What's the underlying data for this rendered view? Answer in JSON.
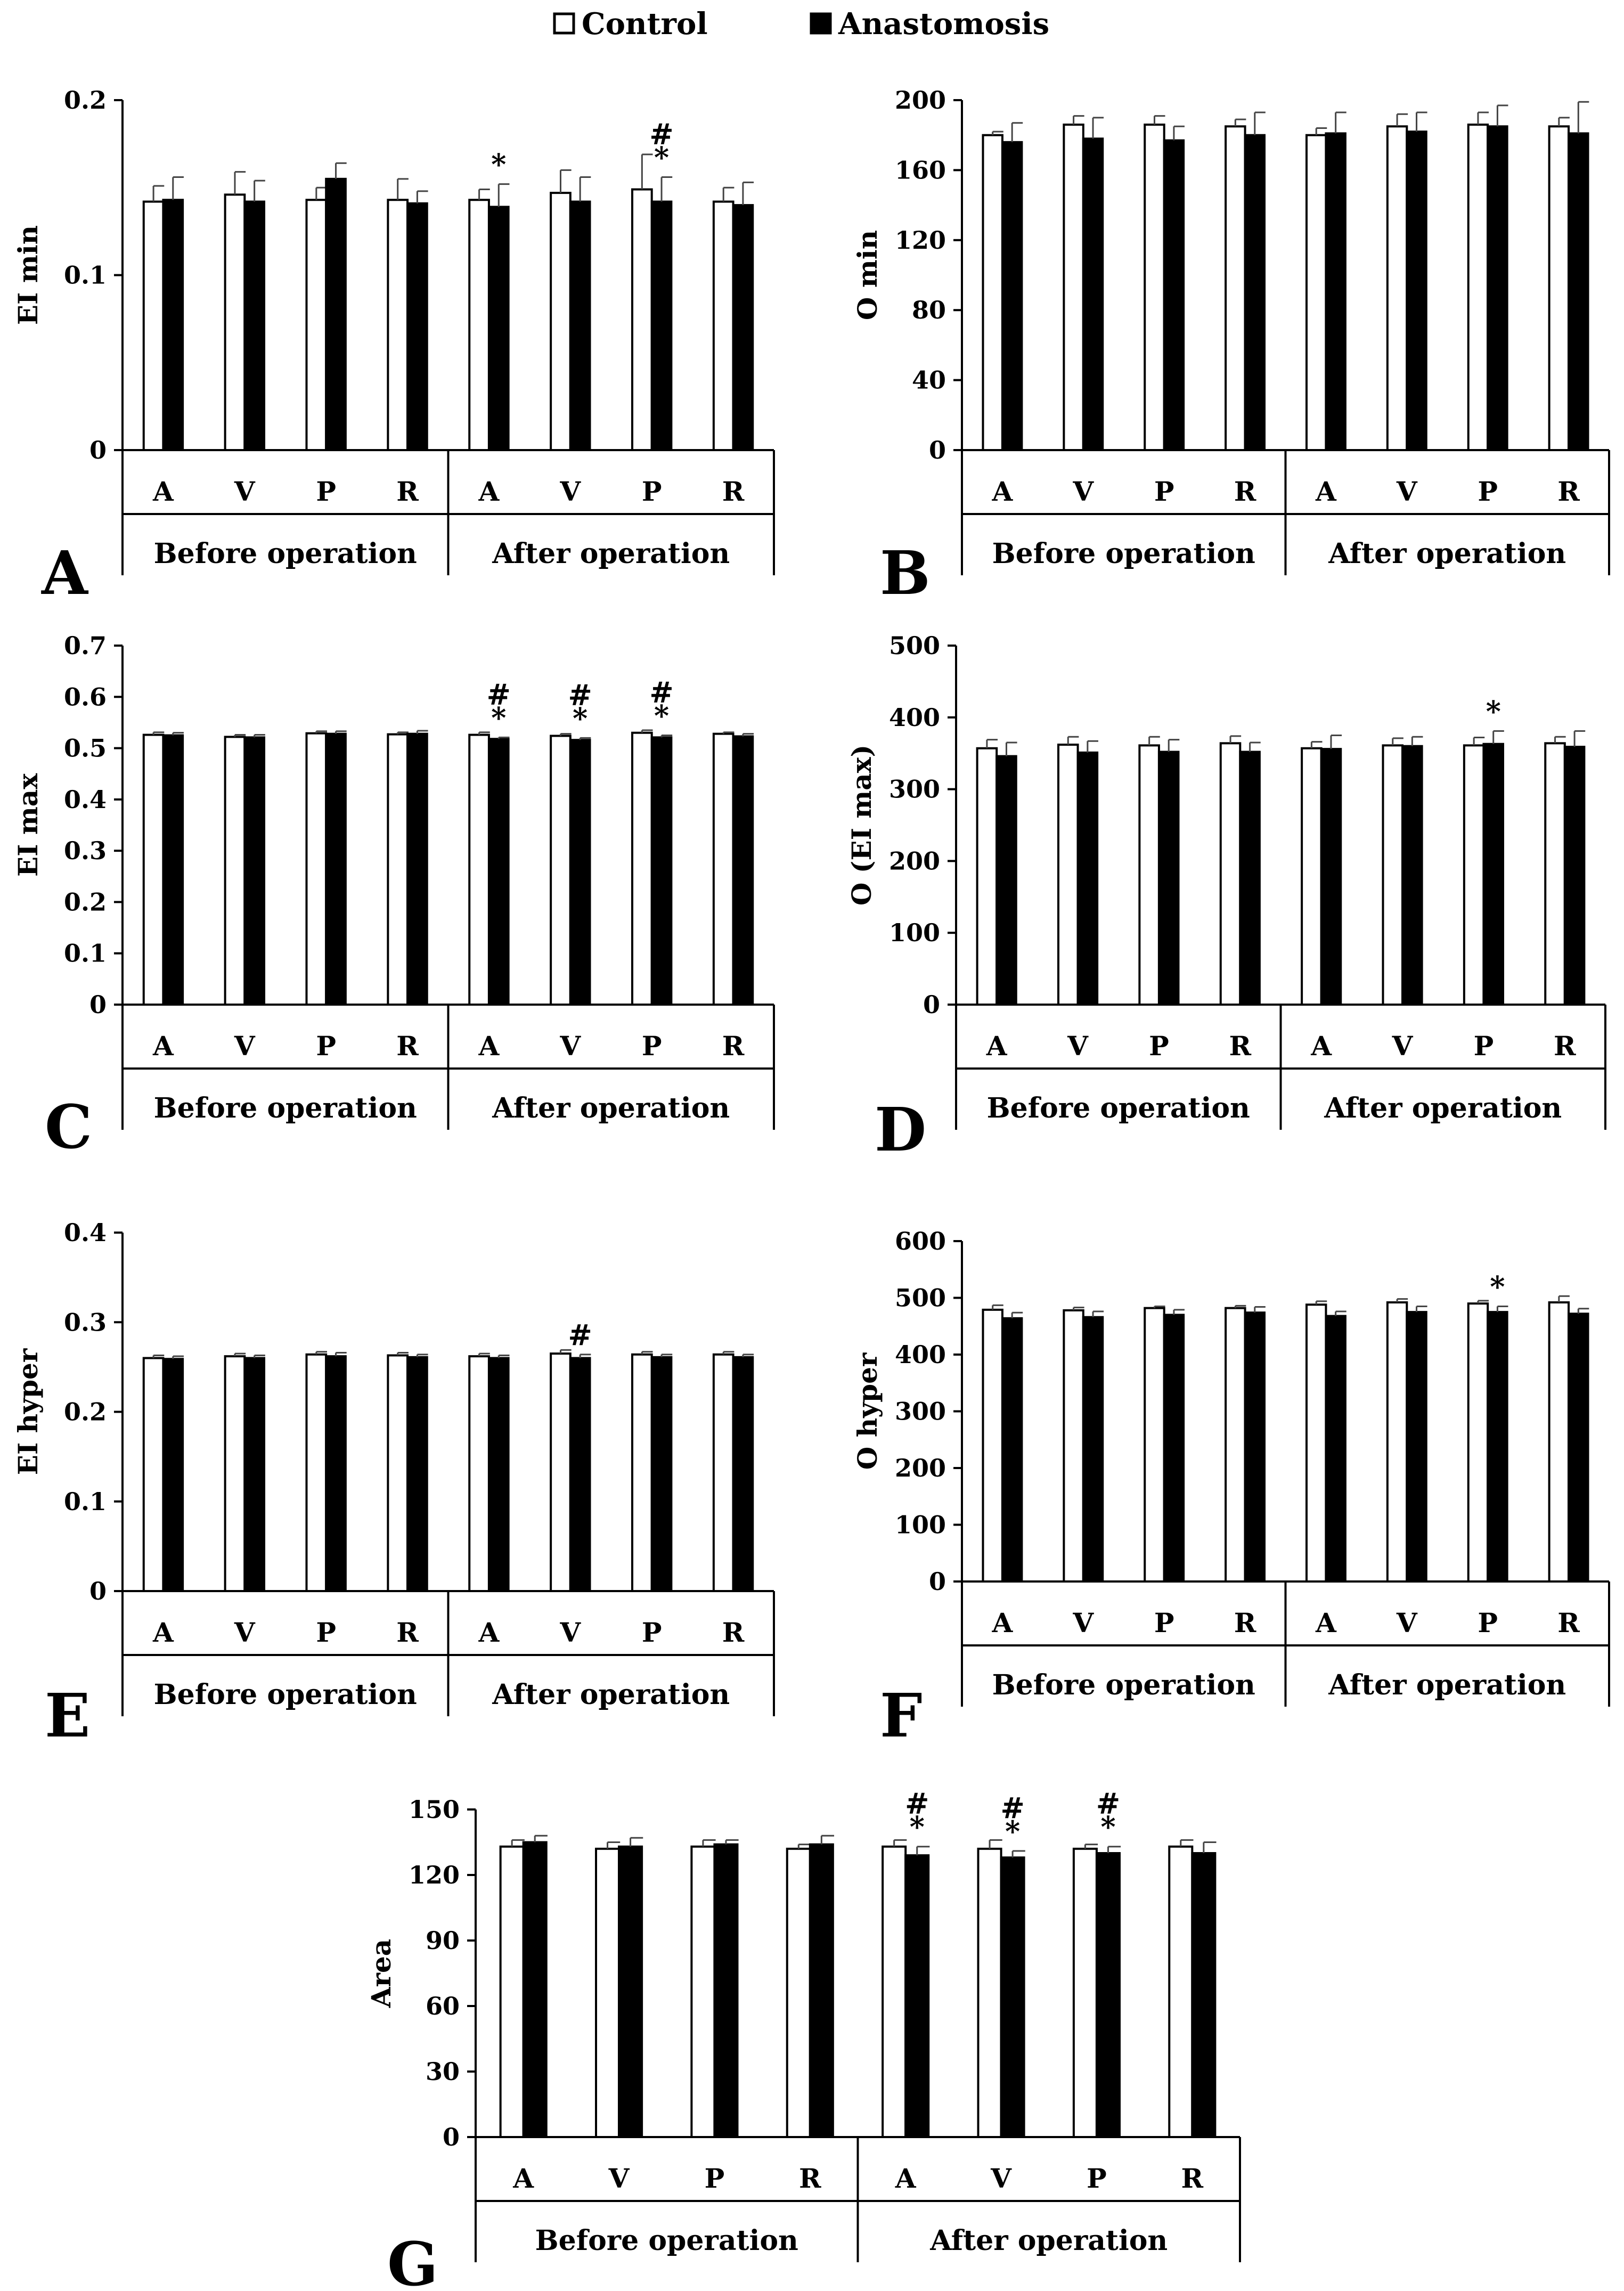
{
  "legend": {
    "control_label": "Control",
    "anastomosis_label": "Anastomosis",
    "control_color": "#ffffff",
    "anastomosis_color": "#000000"
  },
  "chart_data": [
    {
      "type": "bar",
      "panel_letter": "A",
      "ylabel": "EI min",
      "ylim": [
        0,
        0.2
      ],
      "yticks": [
        0,
        0.1,
        0.2
      ],
      "ytick_labels": [
        "0",
        "0.1",
        "0.2"
      ],
      "categories": [
        "A",
        "V",
        "P",
        "R",
        "A",
        "V",
        "P",
        "R"
      ],
      "groups": [
        "Before operation",
        "After operation"
      ],
      "series": [
        {
          "name": "Control",
          "values": [
            0.142,
            0.146,
            0.143,
            0.143,
            0.143,
            0.147,
            0.149,
            0.142
          ],
          "errors": [
            0.009,
            0.013,
            0.007,
            0.012,
            0.006,
            0.013,
            0.02,
            0.008
          ]
        },
        {
          "name": "Anastomosis",
          "values": [
            0.143,
            0.142,
            0.155,
            0.141,
            0.139,
            0.142,
            0.142,
            0.14
          ],
          "errors": [
            0.013,
            0.012,
            0.009,
            0.007,
            0.013,
            0.014,
            0.014,
            0.013
          ]
        }
      ],
      "annotations": [
        {
          "category": 4,
          "series": 1,
          "text": "*"
        },
        {
          "category": 6,
          "series": 1,
          "text": "#\n*"
        }
      ]
    },
    {
      "type": "bar",
      "panel_letter": "B",
      "ylabel": "O min",
      "ylim": [
        0,
        200
      ],
      "yticks": [
        0,
        40,
        80,
        120,
        160,
        200
      ],
      "ytick_labels": [
        "0",
        "40",
        "80",
        "120",
        "160",
        "200"
      ],
      "categories": [
        "A",
        "V",
        "P",
        "R",
        "A",
        "V",
        "P",
        "R"
      ],
      "groups": [
        "Before operation",
        "After operation"
      ],
      "series": [
        {
          "name": "Control",
          "values": [
            180,
            186,
            186,
            185,
            180,
            185,
            186,
            185
          ],
          "errors": [
            2,
            5,
            5,
            4,
            4,
            7,
            7,
            5
          ]
        },
        {
          "name": "Anastomosis",
          "values": [
            176,
            178,
            177,
            180,
            181,
            182,
            185,
            181
          ],
          "errors": [
            11,
            12,
            8,
            13,
            12,
            11,
            12,
            18
          ]
        }
      ],
      "annotations": []
    },
    {
      "type": "bar",
      "panel_letter": "C",
      "ylabel": "EI max",
      "ylim": [
        0,
        0.7
      ],
      "yticks": [
        0,
        0.1,
        0.2,
        0.3,
        0.4,
        0.5,
        0.6,
        0.7
      ],
      "ytick_labels": [
        "0",
        "0.1",
        "0.2",
        "0.3",
        "0.4",
        "0.5",
        "0.6",
        "0.7"
      ],
      "categories": [
        "A",
        "V",
        "P",
        "R",
        "A",
        "V",
        "P",
        "R"
      ],
      "groups": [
        "Before operation",
        "After operation"
      ],
      "series": [
        {
          "name": "Control",
          "values": [
            0.526,
            0.522,
            0.529,
            0.527,
            0.526,
            0.524,
            0.53,
            0.528
          ],
          "errors": [
            0.005,
            0.004,
            0.004,
            0.004,
            0.005,
            0.004,
            0.005,
            0.003
          ]
        },
        {
          "name": "Anastomosis",
          "values": [
            0.525,
            0.521,
            0.528,
            0.528,
            0.518,
            0.516,
            0.521,
            0.523
          ],
          "errors": [
            0.005,
            0.005,
            0.005,
            0.006,
            0.003,
            0.004,
            0.004,
            0.005
          ]
        }
      ],
      "annotations": [
        {
          "category": 4,
          "series": 1,
          "text": "#\n*"
        },
        {
          "category": 5,
          "series": 1,
          "text": "#\n*"
        },
        {
          "category": 6,
          "series": 1,
          "text": "#\n*"
        }
      ]
    },
    {
      "type": "bar",
      "panel_letter": "D",
      "ylabel": "O (EI max)",
      "ylim": [
        0,
        500
      ],
      "yticks": [
        0,
        100,
        200,
        300,
        400,
        500
      ],
      "ytick_labels": [
        "0",
        "100",
        "200",
        "300",
        "400",
        "500"
      ],
      "categories": [
        "A",
        "V",
        "P",
        "R",
        "A",
        "V",
        "P",
        "R"
      ],
      "groups": [
        "Before operation",
        "After operation"
      ],
      "series": [
        {
          "name": "Control",
          "values": [
            357,
            362,
            361,
            364,
            357,
            361,
            361,
            364
          ],
          "errors": [
            12,
            11,
            12,
            10,
            9,
            10,
            11,
            9
          ]
        },
        {
          "name": "Anastomosis",
          "values": [
            346,
            351,
            352,
            352,
            356,
            360,
            363,
            359
          ],
          "errors": [
            19,
            16,
            17,
            13,
            19,
            13,
            18,
            22
          ]
        }
      ],
      "annotations": [
        {
          "category": 6,
          "series": 1,
          "text": "*"
        }
      ]
    },
    {
      "type": "bar",
      "panel_letter": "E",
      "ylabel": "EI hyper",
      "ylim": [
        0,
        0.4
      ],
      "yticks": [
        0,
        0.1,
        0.2,
        0.3,
        0.4
      ],
      "ytick_labels": [
        "0",
        "0.1",
        "0.2",
        "0.3",
        "0.4"
      ],
      "categories": [
        "A",
        "V",
        "P",
        "R",
        "A",
        "V",
        "P",
        "R"
      ],
      "groups": [
        "Before operation",
        "After operation"
      ],
      "series": [
        {
          "name": "Control",
          "values": [
            0.26,
            0.262,
            0.264,
            0.263,
            0.262,
            0.265,
            0.264,
            0.264
          ],
          "errors": [
            0.003,
            0.003,
            0.003,
            0.003,
            0.003,
            0.004,
            0.003,
            0.003
          ]
        },
        {
          "name": "Anastomosis",
          "values": [
            0.259,
            0.26,
            0.262,
            0.261,
            0.26,
            0.26,
            0.261,
            0.261
          ],
          "errors": [
            0.003,
            0.003,
            0.004,
            0.003,
            0.003,
            0.004,
            0.003,
            0.003
          ]
        }
      ],
      "annotations": [
        {
          "category": 5,
          "series": 1,
          "text": "#"
        }
      ]
    },
    {
      "type": "bar",
      "panel_letter": "F",
      "ylabel": "O hyper",
      "ylim": [
        0,
        600
      ],
      "yticks": [
        0,
        100,
        200,
        300,
        400,
        500,
        600
      ],
      "ytick_labels": [
        "0",
        "100",
        "200",
        "300",
        "400",
        "500",
        "600"
      ],
      "categories": [
        "A",
        "V",
        "P",
        "R",
        "A",
        "V",
        "P",
        "R"
      ],
      "groups": [
        "Before operation",
        "After operation"
      ],
      "series": [
        {
          "name": "Control",
          "values": [
            479,
            478,
            482,
            482,
            488,
            492,
            490,
            492
          ],
          "errors": [
            8,
            5,
            3,
            4,
            6,
            6,
            5,
            11
          ]
        },
        {
          "name": "Anastomosis",
          "values": [
            464,
            466,
            470,
            474,
            468,
            475,
            475,
            472
          ],
          "errors": [
            10,
            10,
            9,
            10,
            8,
            10,
            10,
            9
          ]
        }
      ],
      "annotations": [
        {
          "category": 6,
          "series": 1,
          "text": "*"
        }
      ]
    },
    {
      "type": "bar",
      "panel_letter": "G",
      "ylabel": "Area",
      "ylim": [
        0,
        150
      ],
      "yticks": [
        0,
        30,
        60,
        90,
        120,
        150
      ],
      "ytick_labels": [
        "0",
        "30",
        "60",
        "90",
        "120",
        "150"
      ],
      "categories": [
        "A",
        "V",
        "P",
        "R",
        "A",
        "V",
        "P",
        "R"
      ],
      "groups": [
        "Before operation",
        "After operation"
      ],
      "series": [
        {
          "name": "Control",
          "values": [
            133,
            132,
            133,
            132,
            133,
            132,
            132,
            133
          ],
          "errors": [
            3,
            3,
            3,
            2,
            3,
            4,
            2,
            3
          ]
        },
        {
          "name": "Anastomosis",
          "values": [
            135,
            133,
            134,
            134,
            129,
            128,
            130,
            130
          ],
          "errors": [
            3,
            4,
            2,
            4,
            4,
            3,
            3,
            5
          ]
        }
      ],
      "annotations": [
        {
          "category": 4,
          "series": 1,
          "text": "#\n*"
        },
        {
          "category": 5,
          "series": 1,
          "text": "#\n*"
        },
        {
          "category": 6,
          "series": 1,
          "text": "#\n*"
        }
      ]
    }
  ]
}
